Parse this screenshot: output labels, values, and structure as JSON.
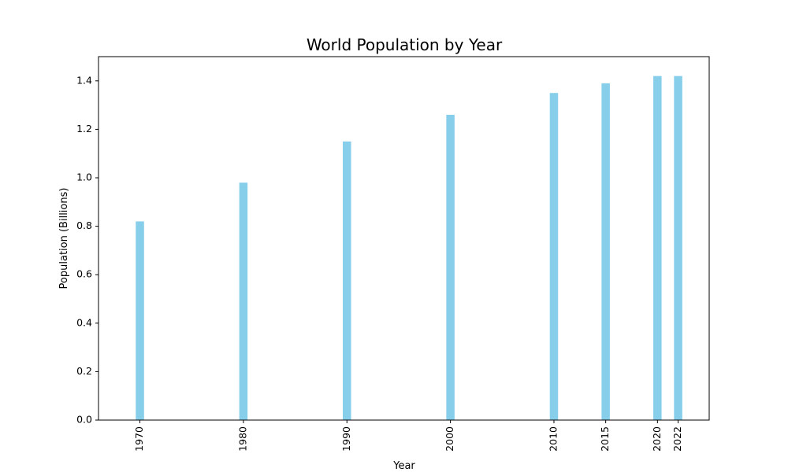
{
  "chart_data": {
    "type": "bar",
    "title": "World Population by Year",
    "xlabel": "Year",
    "ylabel": "Population (Billions)",
    "x": [
      1970,
      1980,
      1990,
      2000,
      2010,
      2015,
      2020,
      2022
    ],
    "categories": [
      "1970",
      "1980",
      "1990",
      "2000",
      "2010",
      "2015",
      "2020",
      "2022"
    ],
    "values": [
      0.82,
      0.98,
      1.15,
      1.26,
      1.35,
      1.39,
      1.42,
      1.42
    ],
    "ylim": [
      0,
      1.5
    ],
    "xlim": [
      1966,
      2025
    ],
    "yticks": [
      "0.0",
      "0.2",
      "0.4",
      "0.6",
      "0.8",
      "1.0",
      "1.2",
      "1.4"
    ],
    "grid": false,
    "legend": "none",
    "colors": {
      "bar": "#87CEEB"
    }
  }
}
